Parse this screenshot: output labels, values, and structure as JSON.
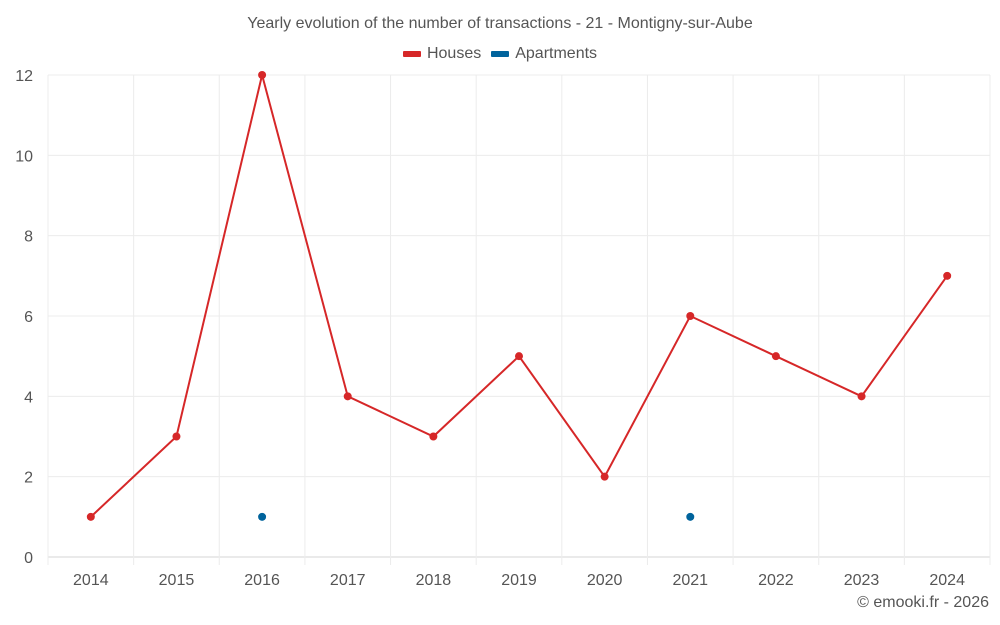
{
  "chart_data": {
    "type": "line",
    "title": "Yearly evolution of the number of transactions - 21 - Montigny-sur-Aube",
    "xlabel": "",
    "ylabel": "",
    "categories": [
      "2014",
      "2015",
      "2016",
      "2017",
      "2018",
      "2019",
      "2020",
      "2021",
      "2022",
      "2023",
      "2024"
    ],
    "series": [
      {
        "name": "Houses",
        "color": "#d62728",
        "values": [
          1,
          3,
          12,
          4,
          3,
          5,
          2,
          6,
          5,
          4,
          7
        ]
      },
      {
        "name": "Apartments",
        "color": "#00639c",
        "values": [
          null,
          null,
          1,
          null,
          null,
          null,
          null,
          1,
          null,
          null,
          null
        ]
      }
    ],
    "ylim": [
      0,
      12
    ],
    "yticks": [
      0,
      2,
      4,
      6,
      8,
      10,
      12
    ],
    "grid": true,
    "legend_position": "top"
  },
  "legend": {
    "houses_label": "Houses",
    "apartments_label": "Apartments"
  },
  "credit": "© emooki.fr - 2026"
}
